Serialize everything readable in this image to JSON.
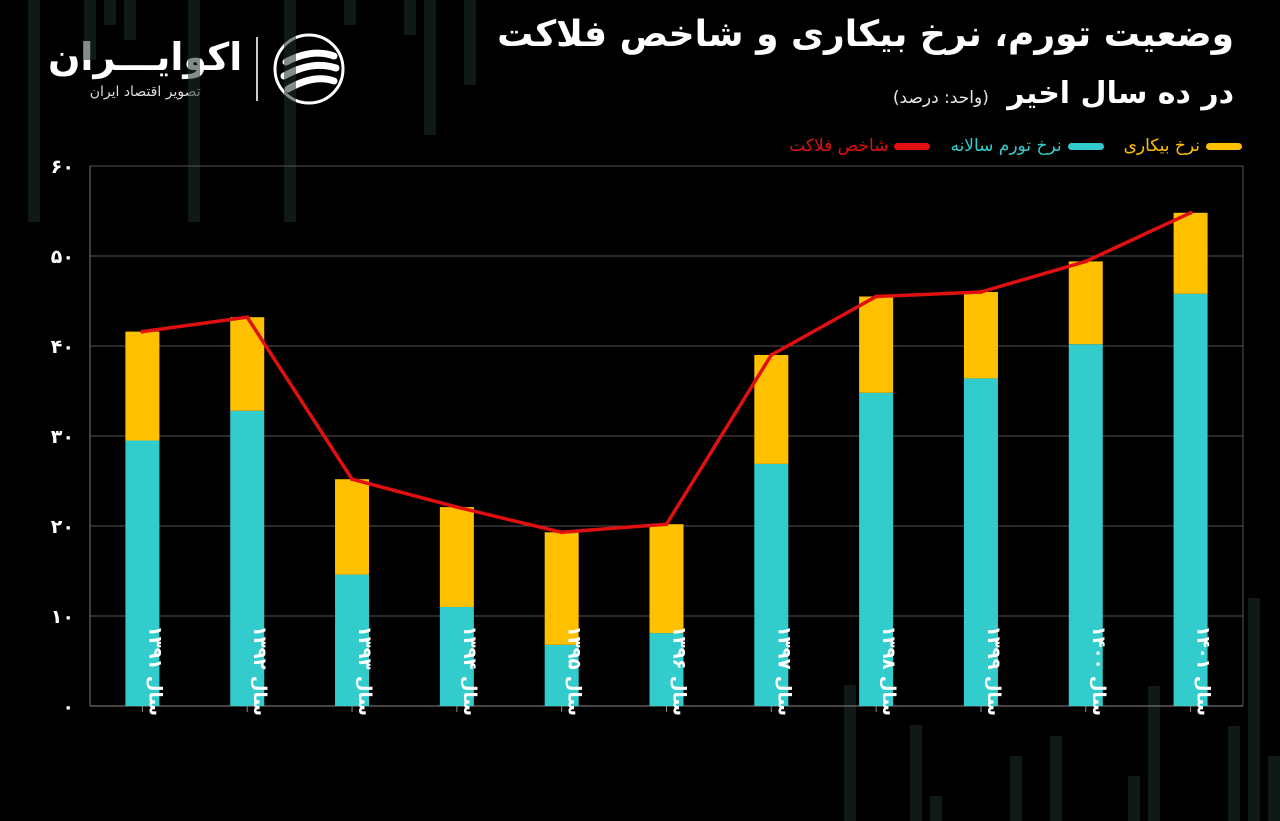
{
  "header": {
    "title_line1": "وضعیت تورم، نرخ بیکاری و شاخص فلاکت",
    "title_line2": "در ده سال اخیر",
    "unit_note": "(واحد: درصد)"
  },
  "logo": {
    "name": "اکوایـــران",
    "subtitle": "تصویر اقتصاد ایران",
    "icon": "ecoiran-stripes-icon"
  },
  "colors": {
    "background": "#000000",
    "inflation": "#33cccc",
    "unemployment": "#ffc000",
    "misery": "#e01010",
    "grid": "#555555",
    "text": "#ffffff"
  },
  "chart_data": {
    "type": "bar",
    "stacked": true,
    "title": "وضعیت تورم، نرخ بیکاری و شاخص فلاکت در ده سال اخیر",
    "ylabel": "درصد",
    "xlabel": "",
    "ylim": [
      0,
      60
    ],
    "yticks": [
      0,
      10,
      20,
      30,
      40,
      50,
      60
    ],
    "ytick_labels": [
      "۰",
      "۱۰",
      "۲۰",
      "۳۰",
      "۴۰",
      "۵۰",
      "۶۰"
    ],
    "grid": true,
    "legend_position": "top-right",
    "categories": [
      "سال ۱۳۹۱",
      "سال ۱۳۹۲",
      "سال ۱۳۹۳",
      "سال ۱۳۹۴",
      "سال ۱۳۹۵",
      "سال ۱۳۹۶",
      "سال ۱۳۹۷",
      "سال ۱۳۹۸",
      "سال ۱۳۹۹",
      "سال ۱۴۰۰",
      "سال ۱۴۰۱"
    ],
    "series": [
      {
        "name": "نرخ تورم سالانه",
        "kind": "bar",
        "values": [
          29.5,
          32.8,
          14.6,
          11.0,
          6.8,
          8.1,
          26.9,
          34.8,
          36.4,
          40.2,
          45.8
        ]
      },
      {
        "name": "نرخ بیکاری",
        "kind": "bar",
        "values": [
          12.1,
          10.4,
          10.6,
          11.1,
          12.5,
          12.1,
          12.1,
          10.7,
          9.6,
          9.2,
          9.0
        ]
      },
      {
        "name": "شاخص فلاکت",
        "kind": "line",
        "values": [
          41.6,
          43.2,
          25.2,
          22.1,
          19.3,
          20.2,
          39.0,
          45.5,
          46.0,
          49.4,
          54.8
        ]
      }
    ],
    "legend": [
      "نرخ بیکاری",
      "نرخ تورم سالانه",
      "شاخص فلاکت"
    ]
  }
}
